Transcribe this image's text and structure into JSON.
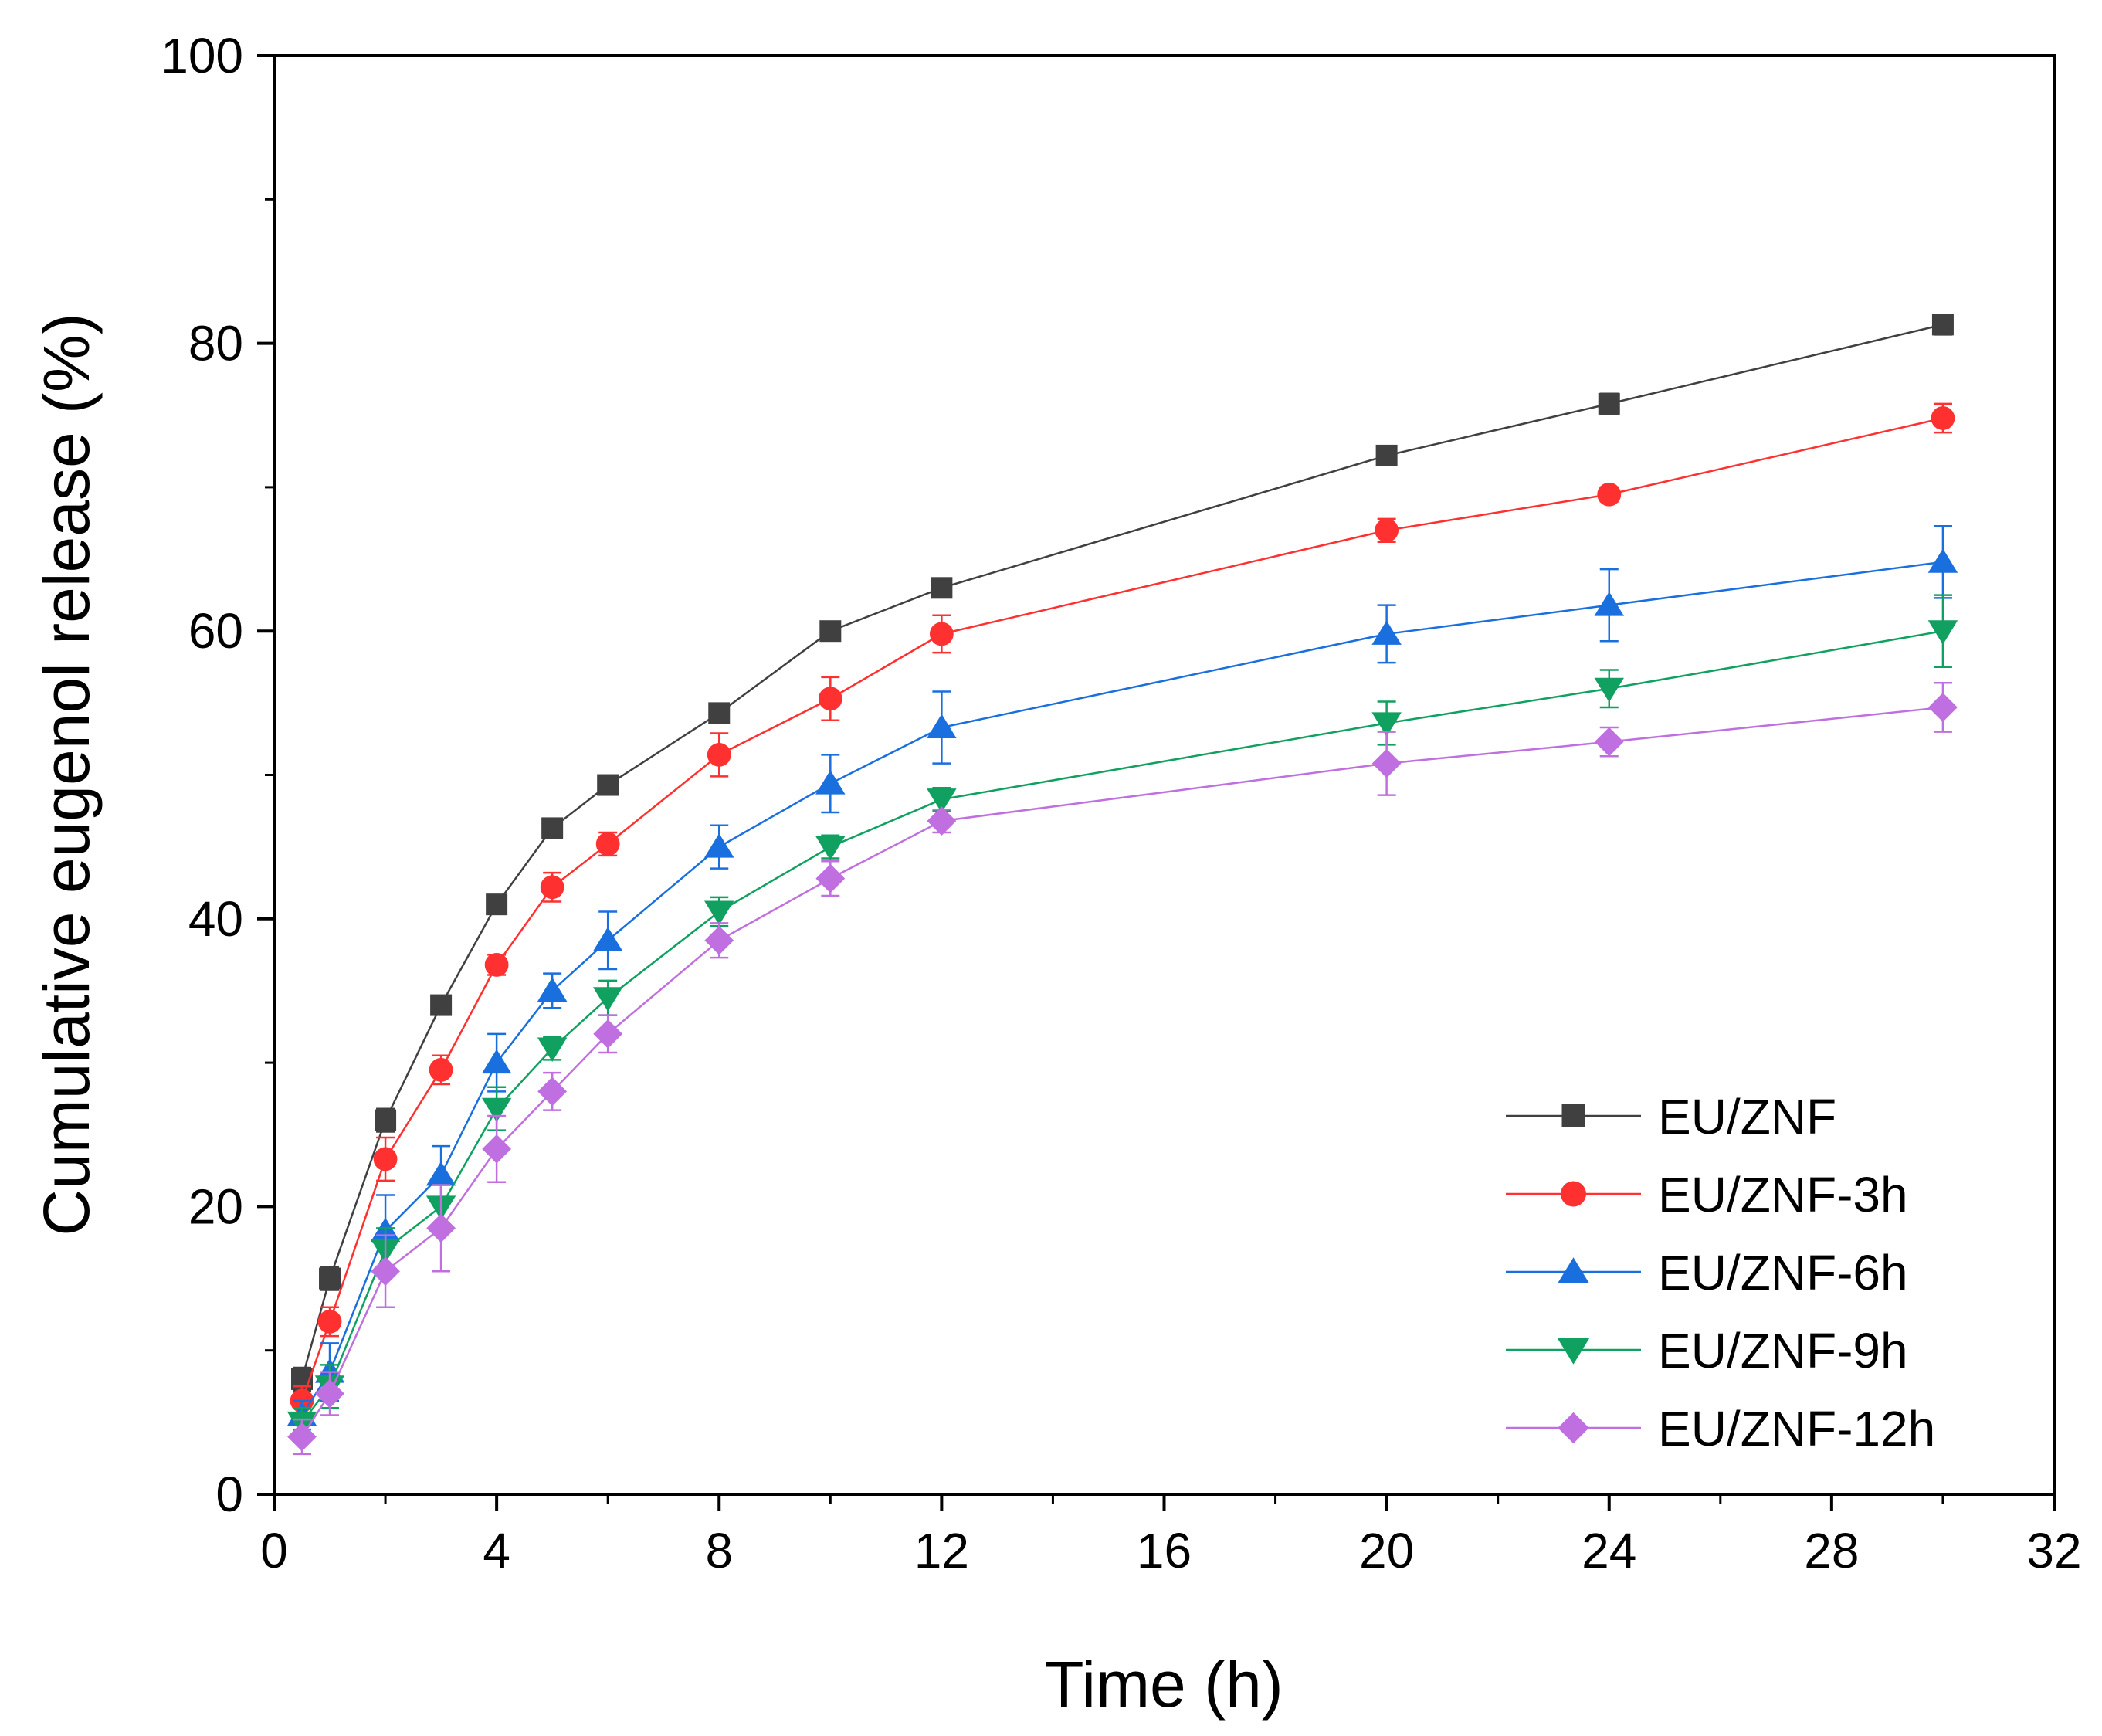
{
  "chart_data": {
    "type": "line",
    "title": "",
    "xlabel": "Time (h)",
    "ylabel": "Cumulative eugenol release (%)",
    "xlim": [
      0,
      32
    ],
    "ylim": [
      0,
      100
    ],
    "xticks": [
      0,
      4,
      8,
      12,
      16,
      20,
      24,
      28,
      32
    ],
    "xtick_labels": [
      "0",
      "4",
      "8",
      "12",
      "16",
      "20",
      "24",
      "28",
      "32"
    ],
    "yticks": [
      0,
      20,
      40,
      60,
      80,
      100
    ],
    "ytick_labels": [
      "0",
      "20",
      "40",
      "60",
      "80",
      "100"
    ],
    "grid": false,
    "legend_position": "bottom-right",
    "x": [
      0.5,
      1,
      2,
      3,
      4,
      5,
      6,
      8,
      10,
      12,
      20,
      24,
      30
    ],
    "series": [
      {
        "name": "EU/ZNF",
        "color": "#404040",
        "marker": "square",
        "values": [
          8.0,
          15.0,
          26.0,
          34.0,
          41.0,
          46.3,
          49.3,
          54.3,
          60.0,
          63.0,
          72.2,
          75.8,
          81.3
        ],
        "errors": [
          0.8,
          0.8,
          0.8,
          0.6,
          0.6,
          0.6,
          0.5,
          0.6,
          0.5,
          0.5,
          0.6,
          0.7,
          0.7
        ]
      },
      {
        "name": "EU/ZNF-3h",
        "color": "#ff3030",
        "marker": "circle",
        "values": [
          6.5,
          12.0,
          23.3,
          29.5,
          36.8,
          42.2,
          45.2,
          51.4,
          55.3,
          59.8,
          67.0,
          69.5,
          74.8
        ],
        "errors": [
          1.0,
          1.0,
          1.5,
          1.0,
          0.7,
          1.0,
          0.8,
          1.5,
          1.5,
          1.3,
          0.8,
          0.5,
          1.0
        ]
      },
      {
        "name": "EU/ZNF-6h",
        "color": "#1a6fdf",
        "marker": "triangle-up",
        "values": [
          5.5,
          8.5,
          18.3,
          22.2,
          30.0,
          35.0,
          38.5,
          45.0,
          49.4,
          53.3,
          59.8,
          61.8,
          64.8
        ],
        "errors": [
          1.0,
          2.0,
          2.5,
          2.0,
          2.0,
          1.2,
          2.0,
          1.5,
          2.0,
          2.5,
          2.0,
          2.5,
          2.5
        ]
      },
      {
        "name": "EU/ZNF-9h",
        "color": "#10a060",
        "marker": "triangle-down",
        "values": [
          5.0,
          7.5,
          17.0,
          20.0,
          26.8,
          31.0,
          34.5,
          40.5,
          45.0,
          48.3,
          53.6,
          56.0,
          60.0
        ],
        "errors": [
          1.0,
          1.5,
          1.5,
          1.5,
          1.5,
          0.8,
          1.2,
          1.0,
          0.8,
          0.8,
          1.5,
          1.3,
          2.5
        ]
      },
      {
        "name": "EU/ZNF-12h",
        "color": "#bf6fdf",
        "marker": "diamond",
        "values": [
          4.0,
          7.0,
          15.5,
          18.5,
          24.0,
          28.0,
          32.0,
          38.5,
          42.8,
          46.8,
          50.8,
          52.3,
          54.7
        ],
        "errors": [
          1.2,
          1.5,
          2.5,
          3.0,
          2.3,
          1.3,
          1.3,
          1.2,
          1.2,
          0.8,
          2.2,
          1.0,
          1.7
        ]
      }
    ]
  }
}
